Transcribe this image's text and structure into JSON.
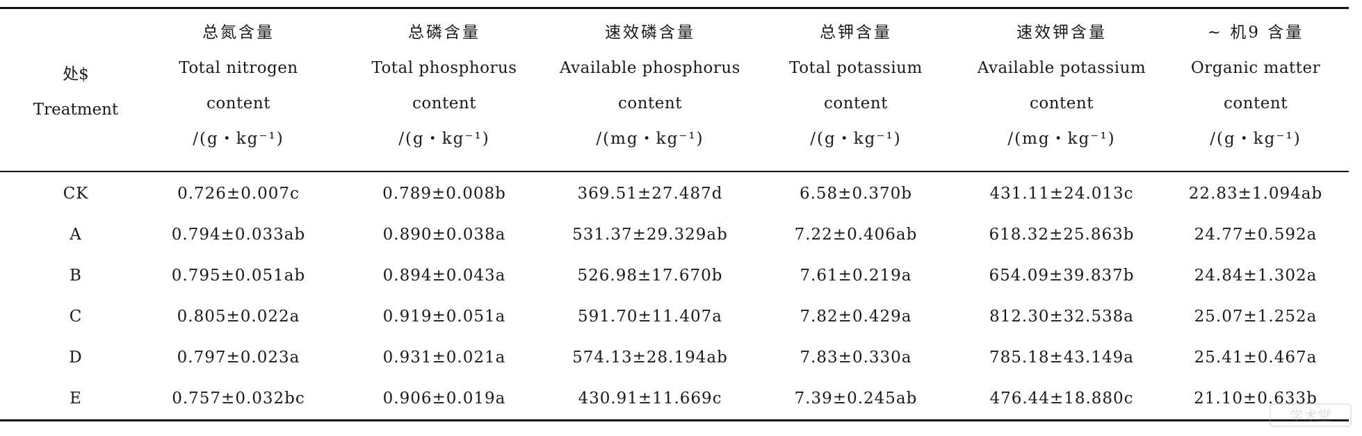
{
  "table": {
    "treatment_header": {
      "zh": "处$",
      "en": "Treatment"
    },
    "columns": [
      {
        "zh": "总氮含量",
        "en1": "Total nitrogen",
        "en2": "content",
        "unit": "/(g・kg⁻¹)"
      },
      {
        "zh": "总磷含量",
        "en1": "Total phosphorus",
        "en2": "content",
        "unit": "/(g・kg⁻¹)"
      },
      {
        "zh": "速效磷含量",
        "en1": "Available phosphorus",
        "en2": "content",
        "unit": "/(mg・kg⁻¹)"
      },
      {
        "zh": "总钾含量",
        "en1": "Total potassium",
        "en2": "content",
        "unit": "/(g・kg⁻¹)"
      },
      {
        "zh": "速效钾含量",
        "en1": "Available potassium",
        "en2": "content",
        "unit": "/(mg・kg⁻¹)"
      },
      {
        "zh": "~ 机9 含量",
        "en1": "Organic matter",
        "en2": "content",
        "unit": "/(g・kg⁻¹)"
      }
    ],
    "rows": [
      [
        "CK",
        "0.726±0.007c",
        "0.789±0.008b",
        "369.51±27.487d",
        "6.58±0.370b",
        "431.11±24.013c",
        "22.83±1.094ab"
      ],
      [
        "A",
        "0.794±0.033ab",
        "0.890±0.038a",
        "531.37±29.329ab",
        "7.22±0.406ab",
        "618.32±25.863b",
        "24.77±0.592a"
      ],
      [
        "B",
        "0.795±0.051ab",
        "0.894±0.043a",
        "526.98±17.670b",
        "7.61±0.219a",
        "654.09±39.837b",
        "24.84±1.302a"
      ],
      [
        "C",
        "0.805±0.022a",
        "0.919±0.051a",
        "591.70±11.407a",
        "7.82±0.429a",
        "812.30±32.538a",
        "25.07±1.252a"
      ],
      [
        "D",
        "0.797±0.023a",
        "0.931±0.021a",
        "574.13±28.194ab",
        "7.83±0.330a",
        "785.18±43.149a",
        "25.41±0.467a"
      ],
      [
        "E",
        "0.757±0.032bc",
        "0.906±0.019a",
        "430.91±11.669c",
        "7.39±0.245ab",
        "476.44±18.880c",
        "21.10±0.633b"
      ]
    ]
  },
  "watermark": {
    "text": "学术堂"
  }
}
